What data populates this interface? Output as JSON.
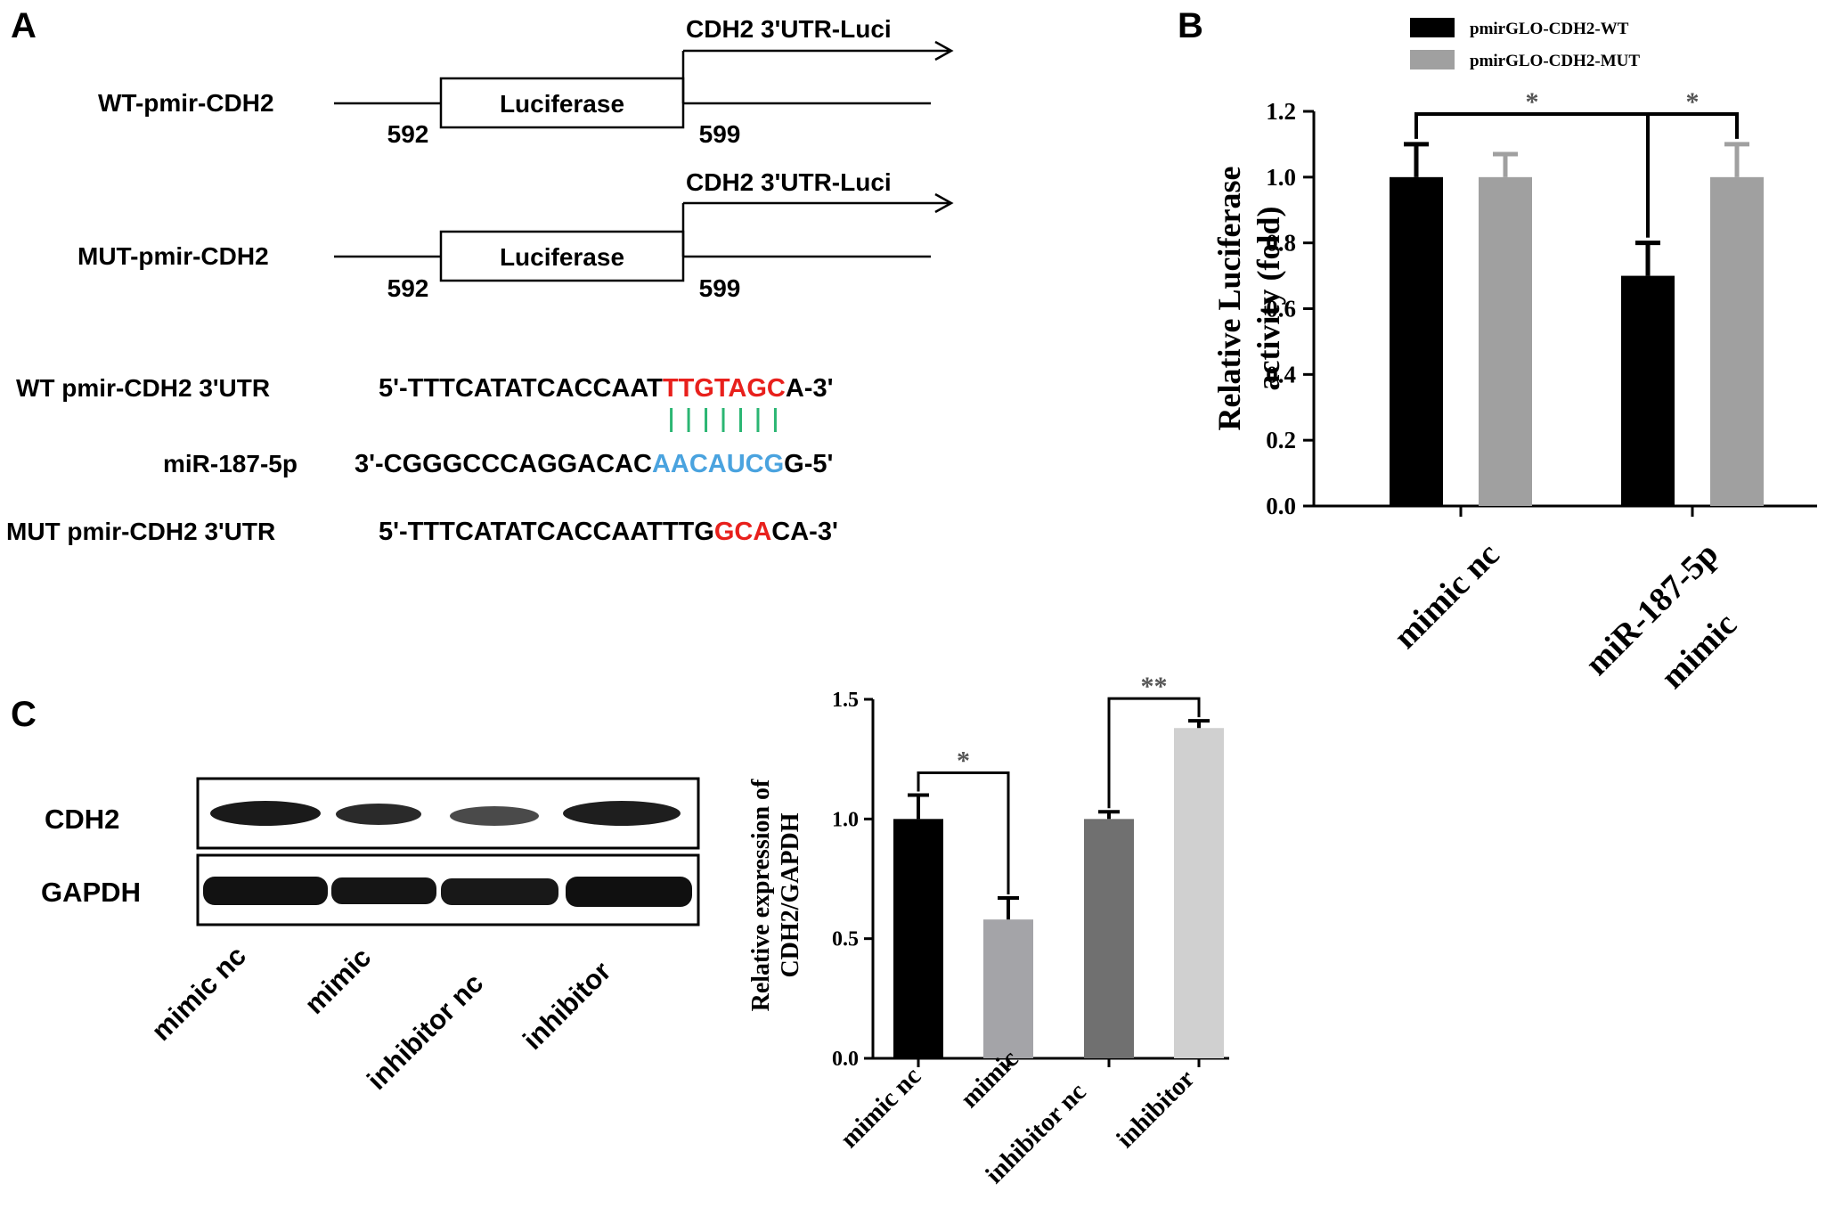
{
  "panelA": {
    "letter": "A",
    "constructs": [
      {
        "name": "WT-pmir-CDH2",
        "box": "Luciferase",
        "pos_left": "592",
        "pos_right": "599",
        "arrow_label": "CDH2 3'UTR-Luci"
      },
      {
        "name": "MUT-pmir-CDH2",
        "box": "Luciferase",
        "pos_left": "592",
        "pos_right": "599",
        "arrow_label": "CDH2 3'UTR-Luci"
      }
    ],
    "sequences": {
      "wt": {
        "label": "WT pmir-CDH2 3'UTR",
        "prefix": "5'-TTTCATATCACCAAT",
        "highlight": "TTGTAGC",
        "suffix": "A-3'"
      },
      "mir": {
        "label": "miR-187-5p",
        "prefix": "3'-CGGGCCCAGGACAC",
        "highlight": "AACAUCG",
        "suffix": "G-5'"
      },
      "mut": {
        "label": "MUT pmir-CDH2 3'UTR",
        "prefix": "5'-TTTCATATCACCAATTTG",
        "highlight": "GCA",
        "suffix": "CA-3'"
      }
    },
    "colors": {
      "wt_highlight": "#e8201c",
      "mir_highlight": "#4aa3df",
      "pairing": "#2bb673",
      "mut_highlight": "#e8201c"
    }
  },
  "panelB": {
    "letter": "B",
    "chart_data": {
      "type": "bar",
      "categories": [
        "mimic nc",
        "miR-187-5p mimic"
      ],
      "category_lines": [
        [
          "mimic nc"
        ],
        [
          "miR-187-5p",
          "mimic"
        ]
      ],
      "series": [
        {
          "name": "pmirGLO-CDH2-WT",
          "values": [
            1.0,
            0.7
          ],
          "errors": [
            0.1,
            0.1
          ],
          "color": "#000000"
        },
        {
          "name": "pmirGLO-CDH2-MUT",
          "values": [
            1.0,
            1.0
          ],
          "errors": [
            0.07,
            0.1
          ],
          "color": "#a0a0a0"
        }
      ],
      "ylabel_lines": [
        "Relative Luciferase",
        "activity (fold)"
      ],
      "ylim": [
        0,
        1.2
      ],
      "yticks": [
        "0.0",
        "0.2",
        "0.4",
        "0.6",
        "0.8",
        "1.0",
        "1.2"
      ],
      "legend_position": "top",
      "significance": [
        {
          "from_series": 0,
          "from_cat": 0,
          "to_series": 0,
          "to_cat": 1,
          "label": "*"
        },
        {
          "from_series": 0,
          "from_cat": 1,
          "to_series": 1,
          "to_cat": 1,
          "label": "*"
        }
      ]
    }
  },
  "panelC": {
    "letter": "C",
    "blot": {
      "rows": [
        "CDH2",
        "GAPDH"
      ],
      "lanes": [
        "mimic nc",
        "mimic",
        "inhibitor nc",
        "inhibitor"
      ]
    },
    "chart_data": {
      "type": "bar",
      "categories": [
        "mimic nc",
        "mimic",
        "inhibitor nc",
        "inhibitor"
      ],
      "values": [
        1.0,
        0.58,
        1.0,
        1.38
      ],
      "errors": [
        0.1,
        0.09,
        0.03,
        0.03
      ],
      "colors": [
        "#000000",
        "#a4a4a8",
        "#707070",
        "#d0d0d0"
      ],
      "ylabel_lines": [
        "Relative expression of",
        "CDH2/GAPDH"
      ],
      "ylim": [
        0,
        1.5
      ],
      "yticks": [
        "0.0",
        "0.5",
        "1.0",
        "1.5"
      ],
      "significance": [
        {
          "from": 0,
          "to": 1,
          "label": "*"
        },
        {
          "from": 2,
          "to": 3,
          "label": "**"
        }
      ]
    }
  }
}
